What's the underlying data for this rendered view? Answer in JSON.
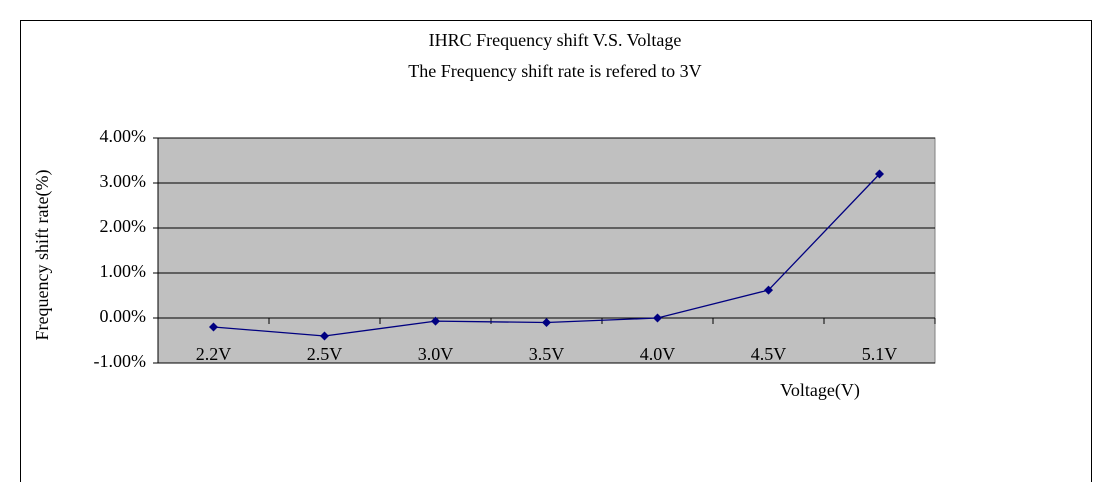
{
  "chart_data": {
    "type": "line",
    "title": "IHRC Frequency shift V.S. Voltage",
    "subtitle": "The Frequency shift rate is refered to 3V",
    "x_label": "Voltage(V)",
    "y_label": "Frequency shift rate(%)",
    "categories": [
      "2.2V",
      "2.5V",
      "3.0V",
      "3.5V",
      "4.0V",
      "4.5V",
      "5.1V"
    ],
    "series": [
      {
        "name": "Frequency shift rate",
        "color": "#000080",
        "values": [
          -0.2,
          -0.4,
          -0.07,
          -0.1,
          0,
          0.62,
          3.2
        ]
      }
    ],
    "ylim": [
      -1,
      4
    ],
    "yticks": [
      {
        "value": -1,
        "label": "-1.00%"
      },
      {
        "value": 0,
        "label": "0.00%"
      },
      {
        "value": 1,
        "label": "1.00%"
      },
      {
        "value": 2,
        "label": "2.00%"
      },
      {
        "value": 3,
        "label": "3.00%"
      },
      {
        "value": 4,
        "label": "4.00%"
      }
    ],
    "grid": true
  }
}
